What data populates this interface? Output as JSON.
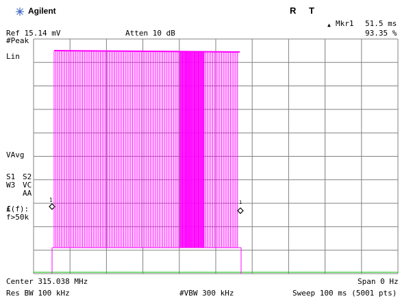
{
  "header": {
    "logo_icon": "agilent-spark-icon",
    "brand": "Agilent",
    "indicator_r": "R",
    "indicator_t": "T",
    "marker_symbol": "▲",
    "marker_label": "Mkr1",
    "marker_time": "51.5 ms",
    "marker_value": "93.35 %"
  },
  "settings": {
    "ref": "Ref 15.14 mV",
    "atten": "Atten 10 dB"
  },
  "left_annotations": {
    "detector": "#Peak",
    "scale": "Lin",
    "vavg": "VAvg",
    "s1": "S1",
    "s2": "S2",
    "w3": "W3",
    "vc": "VC",
    "aa": "AA",
    "ff_prefix": "£",
    "ff_suffix": "(f):",
    "ff_cond": "f>50k"
  },
  "footer": {
    "center": "Center 315.038 MHz",
    "span": "Span 0 Hz",
    "rbw": "Res BW 100 kHz",
    "vbw": "#VBW 300 kHz",
    "sweep": "Sweep 100 ms (5001 pts)"
  },
  "markers": {
    "m1_label": "1",
    "m2_label": "1"
  },
  "colors": {
    "trace": "#ff00ff",
    "grid": "#808080",
    "reference_line": "#00c000"
  }
}
